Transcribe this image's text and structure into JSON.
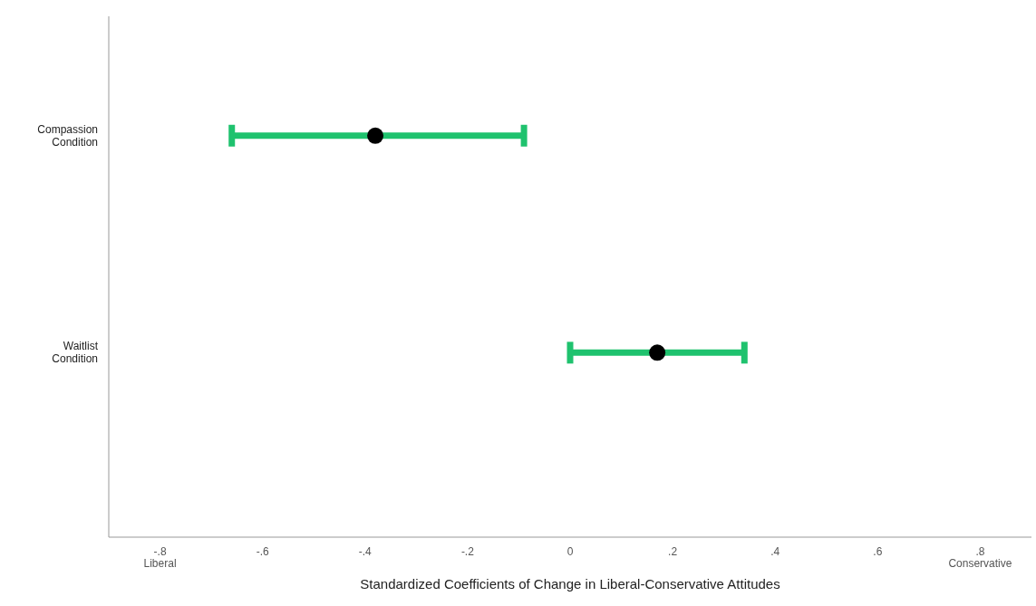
{
  "chart_data": {
    "type": "scatter",
    "orientation": "horizontal",
    "xlabel": "Standardized Coefficients of Change in Liberal-Conservative Attitudes",
    "categories": [
      "Compassion\nCondition",
      "Waitlist\nCondition"
    ],
    "series": [
      {
        "color": "#000000",
        "values": [
          -0.38,
          0.17
        ],
        "errors": [
          [
            -0.66,
            -0.09
          ],
          0.17
        ]
      }
    ],
    "xlim": [
      -0.9,
      0.9
    ],
    "xticks": [
      {
        "value": -0.8,
        "label": "-.8\nLiberal"
      },
      {
        "value": -0.6,
        "label": "-.6"
      },
      {
        "value": -0.4,
        "label": "-.4"
      },
      {
        "value": -0.2,
        "label": "-.2"
      },
      0,
      {
        "value": 0.2,
        "label": ".2"
      },
      {
        "value": 0.4,
        "label": ".4"
      },
      {
        "value": 0.6,
        "label": ".6"
      },
      {
        "value": 0.8,
        "label": ".8\nConservative"
      }
    ],
    "grid": false,
    "legend": false,
    "marker": "circle"
  }
}
